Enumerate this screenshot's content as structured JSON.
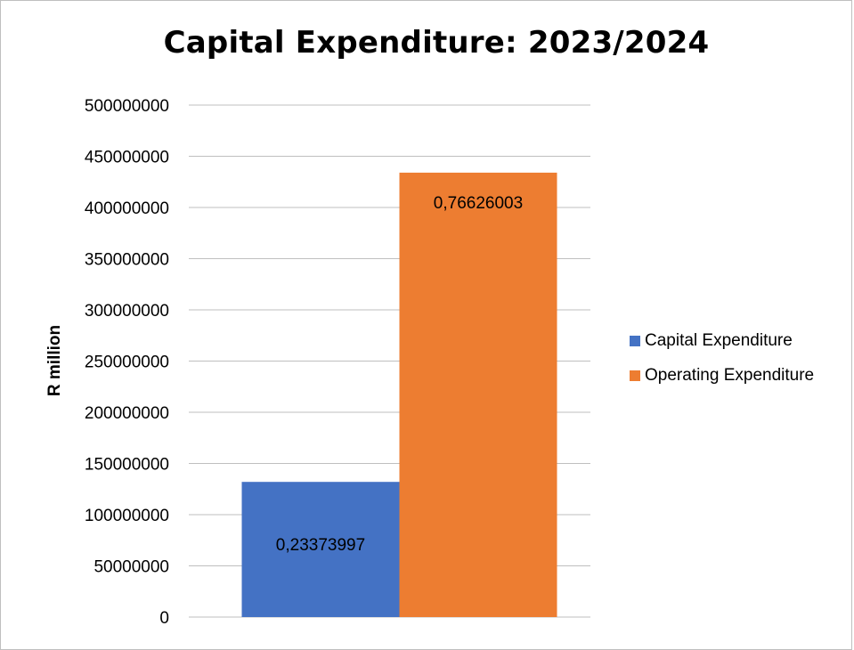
{
  "chart_data": {
    "type": "bar",
    "title": "Capital Expenditure: 2023/2024",
    "xlabel": "",
    "ylabel": "R million",
    "ylim": [
      0,
      500000000
    ],
    "ytick_step": 50000000,
    "yticks": [
      "0",
      "50000000",
      "100000000",
      "150000000",
      "200000000",
      "250000000",
      "300000000",
      "350000000",
      "400000000",
      "450000000",
      "500000000"
    ],
    "grid": true,
    "legend_position": "right",
    "series": [
      {
        "name": "Capital Expenditure",
        "value": 132000000,
        "data_label": "0,23373997",
        "color": "#4472c4"
      },
      {
        "name": "Operating Expenditure",
        "value": 434000000,
        "data_label": "0,76626003",
        "color": "#ed7d31"
      }
    ]
  }
}
